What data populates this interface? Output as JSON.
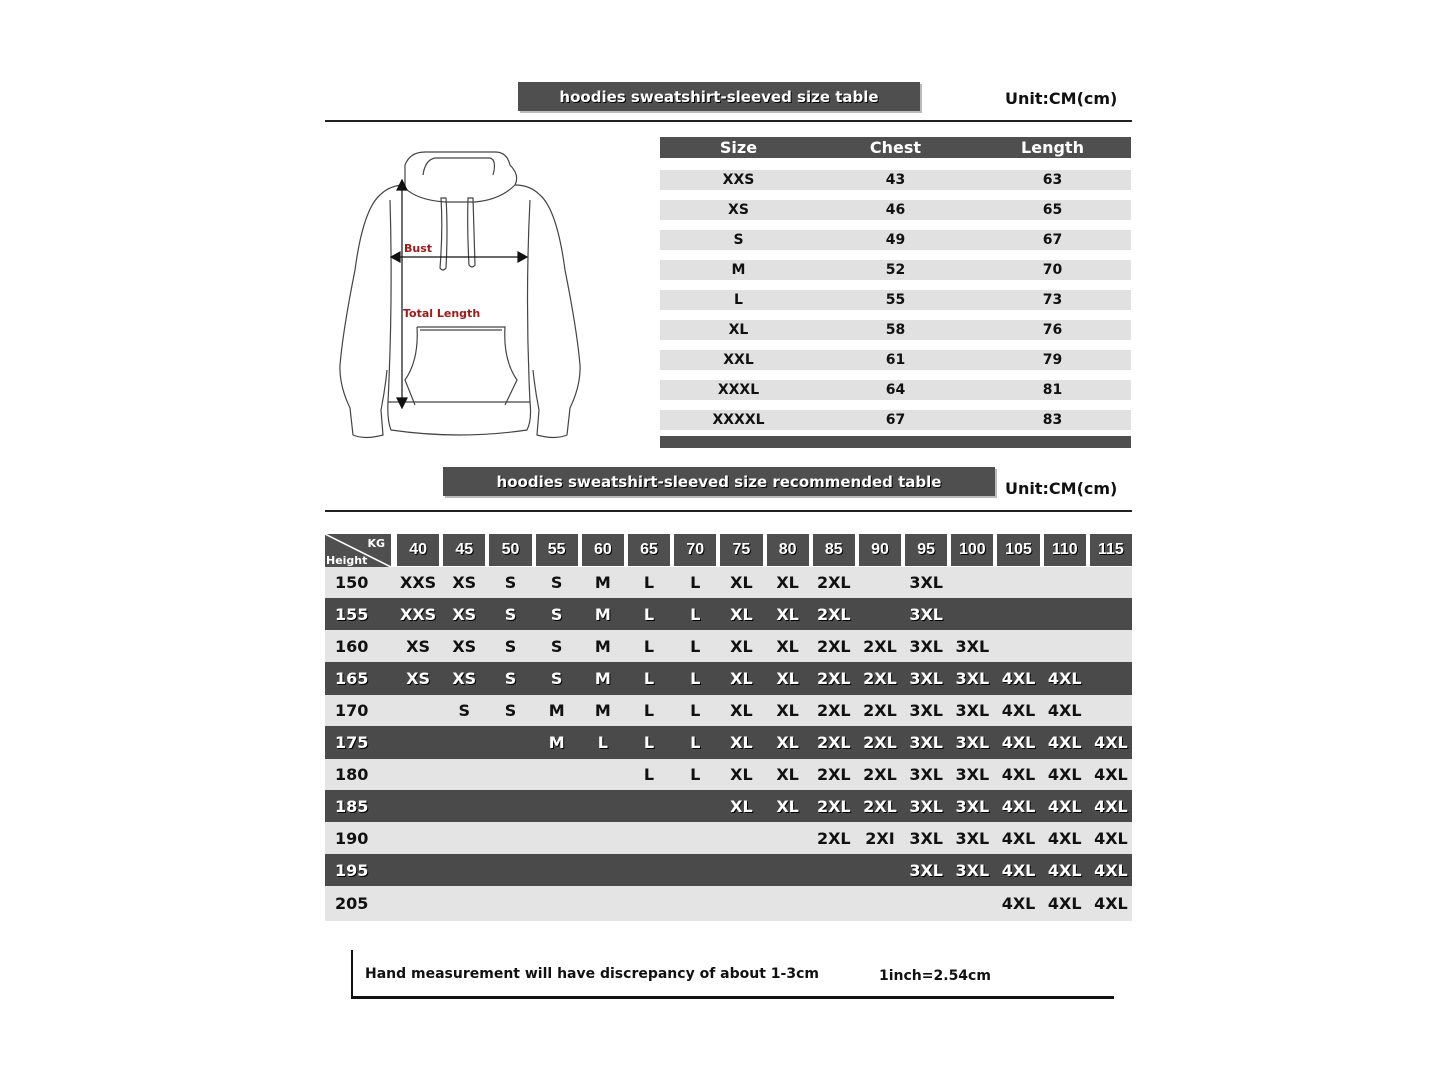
{
  "size_table": {
    "title": "hoodies sweatshirt-sleeved size  table",
    "unit": "Unit:CM(cm)",
    "headers": [
      "Size",
      "Chest",
      "Length"
    ],
    "rows": [
      [
        "XXS",
        "43",
        "63"
      ],
      [
        "XS",
        "46",
        "65"
      ],
      [
        "S",
        "49",
        "67"
      ],
      [
        "M",
        "52",
        "70"
      ],
      [
        "L",
        "55",
        "73"
      ],
      [
        "XL",
        "58",
        "76"
      ],
      [
        "XXL",
        "61",
        "79"
      ],
      [
        "XXXL",
        "64",
        "81"
      ],
      [
        "XXXXL",
        "67",
        "83"
      ]
    ]
  },
  "diagram": {
    "bust_label": "Bust",
    "length_label": "Total Length",
    "label_color": "#a01818"
  },
  "recommend_table": {
    "title": "hoodies sweatshirt-sleeved size recommended table",
    "unit": "Unit:CM(cm)",
    "corner_kg": "KG",
    "corner_height": "Height",
    "weights": [
      "40",
      "45",
      "50",
      "55",
      "60",
      "65",
      "70",
      "75",
      "80",
      "85",
      "90",
      "95",
      "100",
      "105",
      "110",
      "115"
    ],
    "rows": [
      {
        "height": "150",
        "cells": [
          "XXS",
          "XS",
          "S",
          "S",
          "M",
          "L",
          "L",
          "XL",
          "XL",
          "2XL",
          "",
          "3XL",
          "",
          "",
          "",
          ""
        ]
      },
      {
        "height": "155",
        "cells": [
          "XXS",
          "XS",
          "S",
          "S",
          "M",
          "L",
          "L",
          "XL",
          "XL",
          "2XL",
          "",
          "3XL",
          "",
          "",
          "",
          ""
        ]
      },
      {
        "height": "160",
        "cells": [
          "XS",
          "XS",
          "S",
          "S",
          "M",
          "L",
          "L",
          "XL",
          "XL",
          "2XL",
          "2XL",
          "3XL",
          "3XL",
          "",
          "",
          ""
        ]
      },
      {
        "height": "165",
        "cells": [
          "XS",
          "XS",
          "S",
          "S",
          "M",
          "L",
          "L",
          "XL",
          "XL",
          "2XL",
          "2XL",
          "3XL",
          "3XL",
          "4XL",
          "4XL",
          ""
        ]
      },
      {
        "height": "170",
        "cells": [
          "",
          "S",
          "S",
          "M",
          "M",
          "L",
          "L",
          "XL",
          "XL",
          "2XL",
          "2XL",
          "3XL",
          "3XL",
          "4XL",
          "4XL",
          ""
        ]
      },
      {
        "height": "175",
        "cells": [
          "",
          "",
          "",
          "M",
          "L",
          "L",
          "L",
          "XL",
          "XL",
          "2XL",
          "2XL",
          "3XL",
          "3XL",
          "4XL",
          "4XL",
          "4XL"
        ]
      },
      {
        "height": "180",
        "cells": [
          "",
          "",
          "",
          "",
          "",
          "L",
          "L",
          "XL",
          "XL",
          "2XL",
          "2XL",
          "3XL",
          "3XL",
          "4XL",
          "4XL",
          "4XL"
        ]
      },
      {
        "height": "185",
        "cells": [
          "",
          "",
          "",
          "",
          "",
          "",
          "",
          "XL",
          "XL",
          "2XL",
          "2XL",
          "3XL",
          "3XL",
          "4XL",
          "4XL",
          "4XL"
        ]
      },
      {
        "height": "190",
        "cells": [
          "",
          "",
          "",
          "",
          "",
          "",
          "",
          "",
          "",
          "2XL",
          "2XI",
          "3XL",
          "3XL",
          "4XL",
          "4XL",
          "4XL"
        ]
      },
      {
        "height": "195",
        "cells": [
          "",
          "",
          "",
          "",
          "",
          "",
          "",
          "",
          "",
          "",
          "",
          "3XL",
          "3XL",
          "4XL",
          "4XL",
          "4XL"
        ]
      },
      {
        "height": "205",
        "cells": [
          "",
          "",
          "",
          "",
          "",
          "",
          "",
          "",
          "",
          "",
          "",
          "",
          "",
          "4XL",
          "4XL",
          "4XL"
        ]
      }
    ]
  },
  "footer": {
    "note": "Hand measurement will have discrepancy of about  1-3cm",
    "conversion": "1inch=2.54cm"
  }
}
